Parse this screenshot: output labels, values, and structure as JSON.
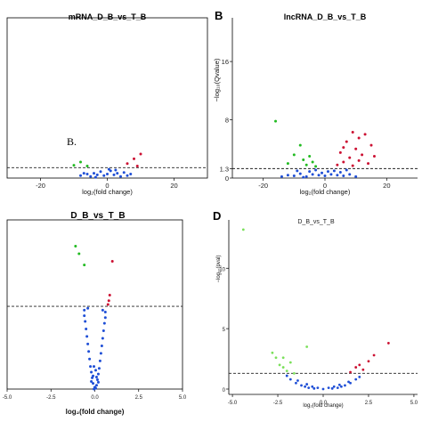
{
  "chart_data": [
    {
      "type": "scatter",
      "title": "mRNA_D_B_vs_T_B",
      "xlabel": "log₂(fold change)",
      "ylabel": "",
      "xlim": [
        -30,
        30
      ],
      "ylim": [
        0,
        20
      ],
      "xticks": [
        -20,
        0,
        20
      ],
      "threshold_y": 1.3,
      "annotation": "B.",
      "series": [
        {
          "color": "#1f4fd6",
          "points": [
            [
              -8,
              0.3
            ],
            [
              -6,
              0.5
            ],
            [
              -5,
              0.2
            ],
            [
              -4,
              0.6
            ],
            [
              -3,
              0.4
            ],
            [
              -2,
              0.8
            ],
            [
              -1,
              0.3
            ],
            [
              0,
              0.5
            ],
            [
              1,
              0.9
            ],
            [
              2,
              0.4
            ],
            [
              3,
              0.6
            ],
            [
              4,
              0.2
            ],
            [
              5,
              0.7
            ],
            [
              6,
              0.3
            ],
            [
              7,
              0.5
            ],
            [
              -7,
              0.6
            ],
            [
              -3.5,
              0.1
            ],
            [
              2.5,
              1.0
            ],
            [
              0.5,
              1.1
            ]
          ]
        },
        {
          "color": "#22bb22",
          "points": [
            [
              -10,
              1.6
            ],
            [
              -8,
              2.0
            ],
            [
              -6,
              1.5
            ]
          ]
        },
        {
          "color": "#cc1133",
          "points": [
            [
              6,
              1.8
            ],
            [
              8,
              2.4
            ],
            [
              9,
              1.5
            ],
            [
              10,
              3.0
            ]
          ]
        }
      ]
    },
    {
      "type": "scatter",
      "title": "lncRNA_D_B_vs_T_B",
      "xlabel": "log₂(fold change)",
      "ylabel": "−log₁₀(Qvalue)",
      "xlim": [
        -30,
        30
      ],
      "ylim": [
        0,
        22
      ],
      "xticks": [
        -20,
        0,
        20
      ],
      "yticks": [
        0,
        1.3,
        8,
        16
      ],
      "threshold_y": 1.3,
      "series": [
        {
          "color": "#1f4fd6",
          "points": [
            [
              -14,
              0.2
            ],
            [
              -12,
              0.4
            ],
            [
              -10,
              0.3
            ],
            [
              -8,
              0.6
            ],
            [
              -6,
              0.2
            ],
            [
              -5,
              0.9
            ],
            [
              -4,
              0.5
            ],
            [
              -3,
              1.1
            ],
            [
              -2,
              0.4
            ],
            [
              -1,
              0.7
            ],
            [
              0,
              0.3
            ],
            [
              1,
              0.9
            ],
            [
              2,
              0.5
            ],
            [
              3,
              1.0
            ],
            [
              4,
              0.4
            ],
            [
              5,
              0.8
            ],
            [
              6,
              0.3
            ],
            [
              8,
              0.5
            ],
            [
              10,
              0.2
            ],
            [
              -9,
              1.0
            ],
            [
              -7,
              0.1
            ],
            [
              7,
              1.1
            ]
          ]
        },
        {
          "color": "#22bb22",
          "points": [
            [
              -16,
              7.8
            ],
            [
              -12,
              2.0
            ],
            [
              -10,
              3.2
            ],
            [
              -8,
              4.5
            ],
            [
              -7,
              2.5
            ],
            [
              -6,
              1.8
            ],
            [
              -5,
              3.0
            ],
            [
              -4,
              2.2
            ],
            [
              -3,
              1.6
            ]
          ]
        },
        {
          "color": "#cc1133",
          "points": [
            [
              4,
              1.8
            ],
            [
              5,
              3.5
            ],
            [
              6,
              2.2
            ],
            [
              7,
              5.0
            ],
            [
              8,
              2.8
            ],
            [
              9,
              1.7
            ],
            [
              10,
              4.0
            ],
            [
              11,
              2.4
            ],
            [
              12,
              3.2
            ],
            [
              13,
              6.0
            ],
            [
              14,
              2.0
            ],
            [
              15,
              4.5
            ],
            [
              16,
              3.0
            ],
            [
              11,
              5.5
            ],
            [
              9,
              6.3
            ],
            [
              6,
              4.2
            ]
          ]
        }
      ]
    },
    {
      "type": "scatter",
      "title": "D_B_vs_T_B",
      "xlabel": "log₂(fold change)",
      "ylabel": "",
      "xlim": [
        -5,
        5
      ],
      "ylim": [
        0,
        4.5
      ],
      "xticks": [
        "-5.0",
        "-2.5",
        "0.0",
        "2.5",
        "5.0"
      ],
      "threshold_y": 2.2,
      "series": [
        {
          "color": "#1f4fd6",
          "points": [
            [
              -0.05,
              0.0
            ],
            [
              0.0,
              0.05
            ],
            [
              0.05,
              0.02
            ],
            [
              -0.1,
              0.15
            ],
            [
              0.1,
              0.1
            ],
            [
              -0.15,
              0.3
            ],
            [
              0.15,
              0.25
            ],
            [
              -0.2,
              0.45
            ],
            [
              0.2,
              0.4
            ],
            [
              -0.25,
              0.6
            ],
            [
              0.25,
              0.55
            ],
            [
              -0.3,
              0.8
            ],
            [
              0.3,
              0.75
            ],
            [
              -0.35,
              1.0
            ],
            [
              0.35,
              0.95
            ],
            [
              -0.4,
              1.2
            ],
            [
              0.4,
              1.15
            ],
            [
              -0.45,
              1.4
            ],
            [
              0.45,
              1.35
            ],
            [
              -0.5,
              1.6
            ],
            [
              0.5,
              1.55
            ],
            [
              -0.55,
              1.8
            ],
            [
              0.55,
              1.75
            ],
            [
              -0.6,
              1.95
            ],
            [
              0.6,
              1.9
            ],
            [
              -0.6,
              2.1
            ],
            [
              0.6,
              2.05
            ],
            [
              -0.2,
              0.2
            ],
            [
              0.2,
              0.18
            ],
            [
              -0.1,
              0.35
            ],
            [
              0.1,
              0.32
            ],
            [
              0.05,
              0.5
            ],
            [
              -0.05,
              0.6
            ],
            [
              0.45,
              2.1
            ],
            [
              -0.4,
              2.15
            ]
          ]
        },
        {
          "color": "#22bb22",
          "points": [
            [
              -1.1,
              3.8
            ],
            [
              -0.9,
              3.6
            ],
            [
              -0.6,
              3.3
            ]
          ]
        },
        {
          "color": "#cc1133",
          "points": [
            [
              0.75,
              2.25
            ],
            [
              0.85,
              2.5
            ],
            [
              0.8,
              2.35
            ],
            [
              1.0,
              3.4
            ]
          ]
        }
      ]
    },
    {
      "type": "scatter",
      "title": "D_B_vs_T_B",
      "xlabel": "log₂(fold change)",
      "ylabel": "−log₁₀(pval)",
      "xlim": [
        -5.2,
        5.2
      ],
      "ylim": [
        0,
        14
      ],
      "xticks": [
        "-5.0",
        "-2.5",
        "0.0",
        "2.5",
        "5.0"
      ],
      "yticks": [
        "0",
        "5",
        "10"
      ],
      "threshold_y": 1.3,
      "series": [
        {
          "color": "#1f4fd6",
          "points": [
            [
              -1.8,
              0.8
            ],
            [
              -1.5,
              0.5
            ],
            [
              -1.2,
              0.3
            ],
            [
              -1.0,
              0.2
            ],
            [
              -0.8,
              0.1
            ],
            [
              -0.5,
              0.05
            ],
            [
              0.0,
              0.0
            ],
            [
              0.5,
              0.05
            ],
            [
              0.8,
              0.1
            ],
            [
              1.0,
              0.2
            ],
            [
              1.2,
              0.3
            ],
            [
              1.5,
              0.5
            ],
            [
              1.8,
              0.8
            ],
            [
              -1.4,
              0.7
            ],
            [
              1.4,
              0.6
            ],
            [
              -0.9,
              0.4
            ],
            [
              0.9,
              0.35
            ],
            [
              -0.6,
              0.2
            ],
            [
              0.6,
              0.2
            ],
            [
              -0.3,
              0.1
            ],
            [
              0.3,
              0.1
            ],
            [
              2.0,
              1.0
            ],
            [
              -2.0,
              1.1
            ]
          ]
        },
        {
          "color": "#7be05b",
          "points": [
            [
              -2.6,
              2.6
            ],
            [
              -2.4,
              2.0
            ],
            [
              -2.2,
              1.8
            ],
            [
              -2.0,
              1.5
            ],
            [
              -2.8,
              3.0
            ],
            [
              -1.6,
              1.3
            ],
            [
              -0.9,
              3.5
            ],
            [
              -1.8,
              2.2
            ],
            [
              -2.2,
              2.6
            ],
            [
              -4.4,
              13.2
            ]
          ]
        },
        {
          "color": "#cc1133",
          "points": [
            [
              1.5,
              1.4
            ],
            [
              1.8,
              1.8
            ],
            [
              2.0,
              2.0
            ],
            [
              2.2,
              1.6
            ],
            [
              2.5,
              2.3
            ],
            [
              2.8,
              2.8
            ],
            [
              3.6,
              3.8
            ]
          ]
        }
      ]
    }
  ],
  "labels": {
    "panel_b": "B",
    "panel_d": "D"
  }
}
